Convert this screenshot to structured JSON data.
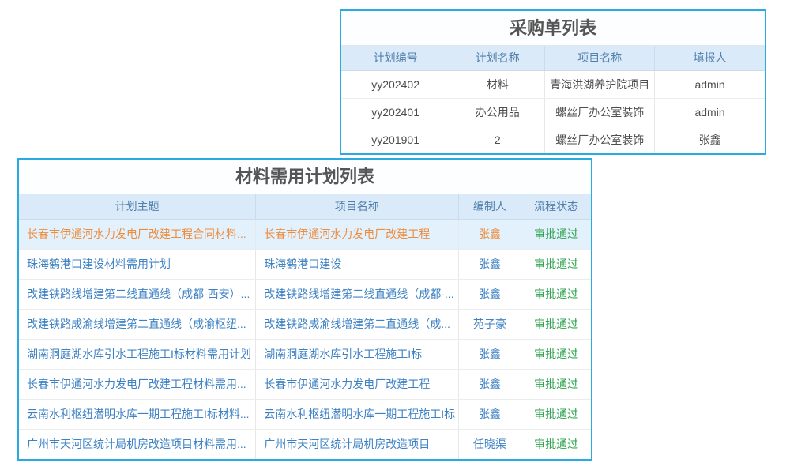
{
  "colors": {
    "card_border": "#29abe2",
    "header_bg": "#dbeaf8",
    "header_text": "#5081ae",
    "title_text": "#555555",
    "body_text": "#4d4d4d",
    "link_text": "#3e82c4",
    "highlight_text": "#ee8c3e",
    "highlight_bg": "#e2f1fc",
    "status_text": "#2ca24c"
  },
  "purchase_table": {
    "title": "采购单列表",
    "columns": [
      "计划编号",
      "计划名称",
      "项目名称",
      "填报人"
    ],
    "rows": [
      [
        "yy202402",
        "材料",
        "青海洪湖养护院项目",
        "admin"
      ],
      [
        "yy202401",
        "办公用品",
        "螺丝厂办公室装饰",
        "admin"
      ],
      [
        "yy201901",
        "2",
        "螺丝厂办公室装饰",
        "张鑫"
      ]
    ]
  },
  "material_table": {
    "title": "材料需用计划列表",
    "columns": [
      "计划主题",
      "项目名称",
      "编制人",
      "流程状态"
    ],
    "rows": [
      {
        "subject": "长春市伊通河水力发电厂改建工程合同材料...",
        "project": "长春市伊通河水力发电厂改建工程",
        "author": "张鑫",
        "status": "审批通过",
        "highlighted": true
      },
      {
        "subject": "珠海鹤港口建设材料需用计划",
        "project": "珠海鹤港口建设",
        "author": "张鑫",
        "status": "审批通过",
        "highlighted": false
      },
      {
        "subject": "改建铁路线增建第二线直通线（成都-西安）...",
        "project": "改建铁路线增建第二线直通线（成都-...",
        "author": "张鑫",
        "status": "审批通过",
        "highlighted": false
      },
      {
        "subject": "改建铁路成渝线增建第二直通线（成渝枢纽...",
        "project": "改建铁路成渝线增建第二直通线（成...",
        "author": "苑子豪",
        "status": "审批通过",
        "highlighted": false
      },
      {
        "subject": "湖南洞庭湖水库引水工程施工I标材料需用计划",
        "project": "湖南洞庭湖水库引水工程施工I标",
        "author": "张鑫",
        "status": "审批通过",
        "highlighted": false
      },
      {
        "subject": "长春市伊通河水力发电厂改建工程材料需用...",
        "project": "长春市伊通河水力发电厂改建工程",
        "author": "张鑫",
        "status": "审批通过",
        "highlighted": false
      },
      {
        "subject": "云南水利枢纽潜明水库一期工程施工I标材料...",
        "project": "云南水利枢纽潜明水库一期工程施工I标",
        "author": "张鑫",
        "status": "审批通过",
        "highlighted": false
      },
      {
        "subject": "广州市天河区统计局机房改造项目材料需用...",
        "project": "广州市天河区统计局机房改造项目",
        "author": "任晓渠",
        "status": "审批通过",
        "highlighted": false
      }
    ]
  }
}
